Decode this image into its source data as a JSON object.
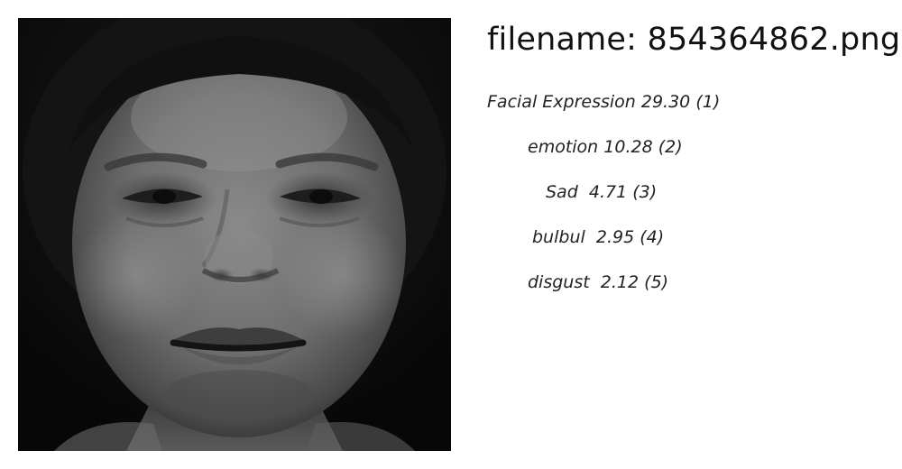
{
  "filename_prefix": "filename:",
  "filename": "854364862.png",
  "predictions": [
    {
      "label": "Facial Expression",
      "score": "29.30",
      "rank": "(1)"
    },
    {
      "label": "emotion",
      "score": "10.28",
      "rank": "(2)"
    },
    {
      "label": "Sad",
      "score": "4.71",
      "rank": "(3)"
    },
    {
      "label": "bulbul",
      "score": "2.95",
      "rank": "(4)"
    },
    {
      "label": "disgust",
      "score": "2.12",
      "rank": "(5)"
    }
  ]
}
